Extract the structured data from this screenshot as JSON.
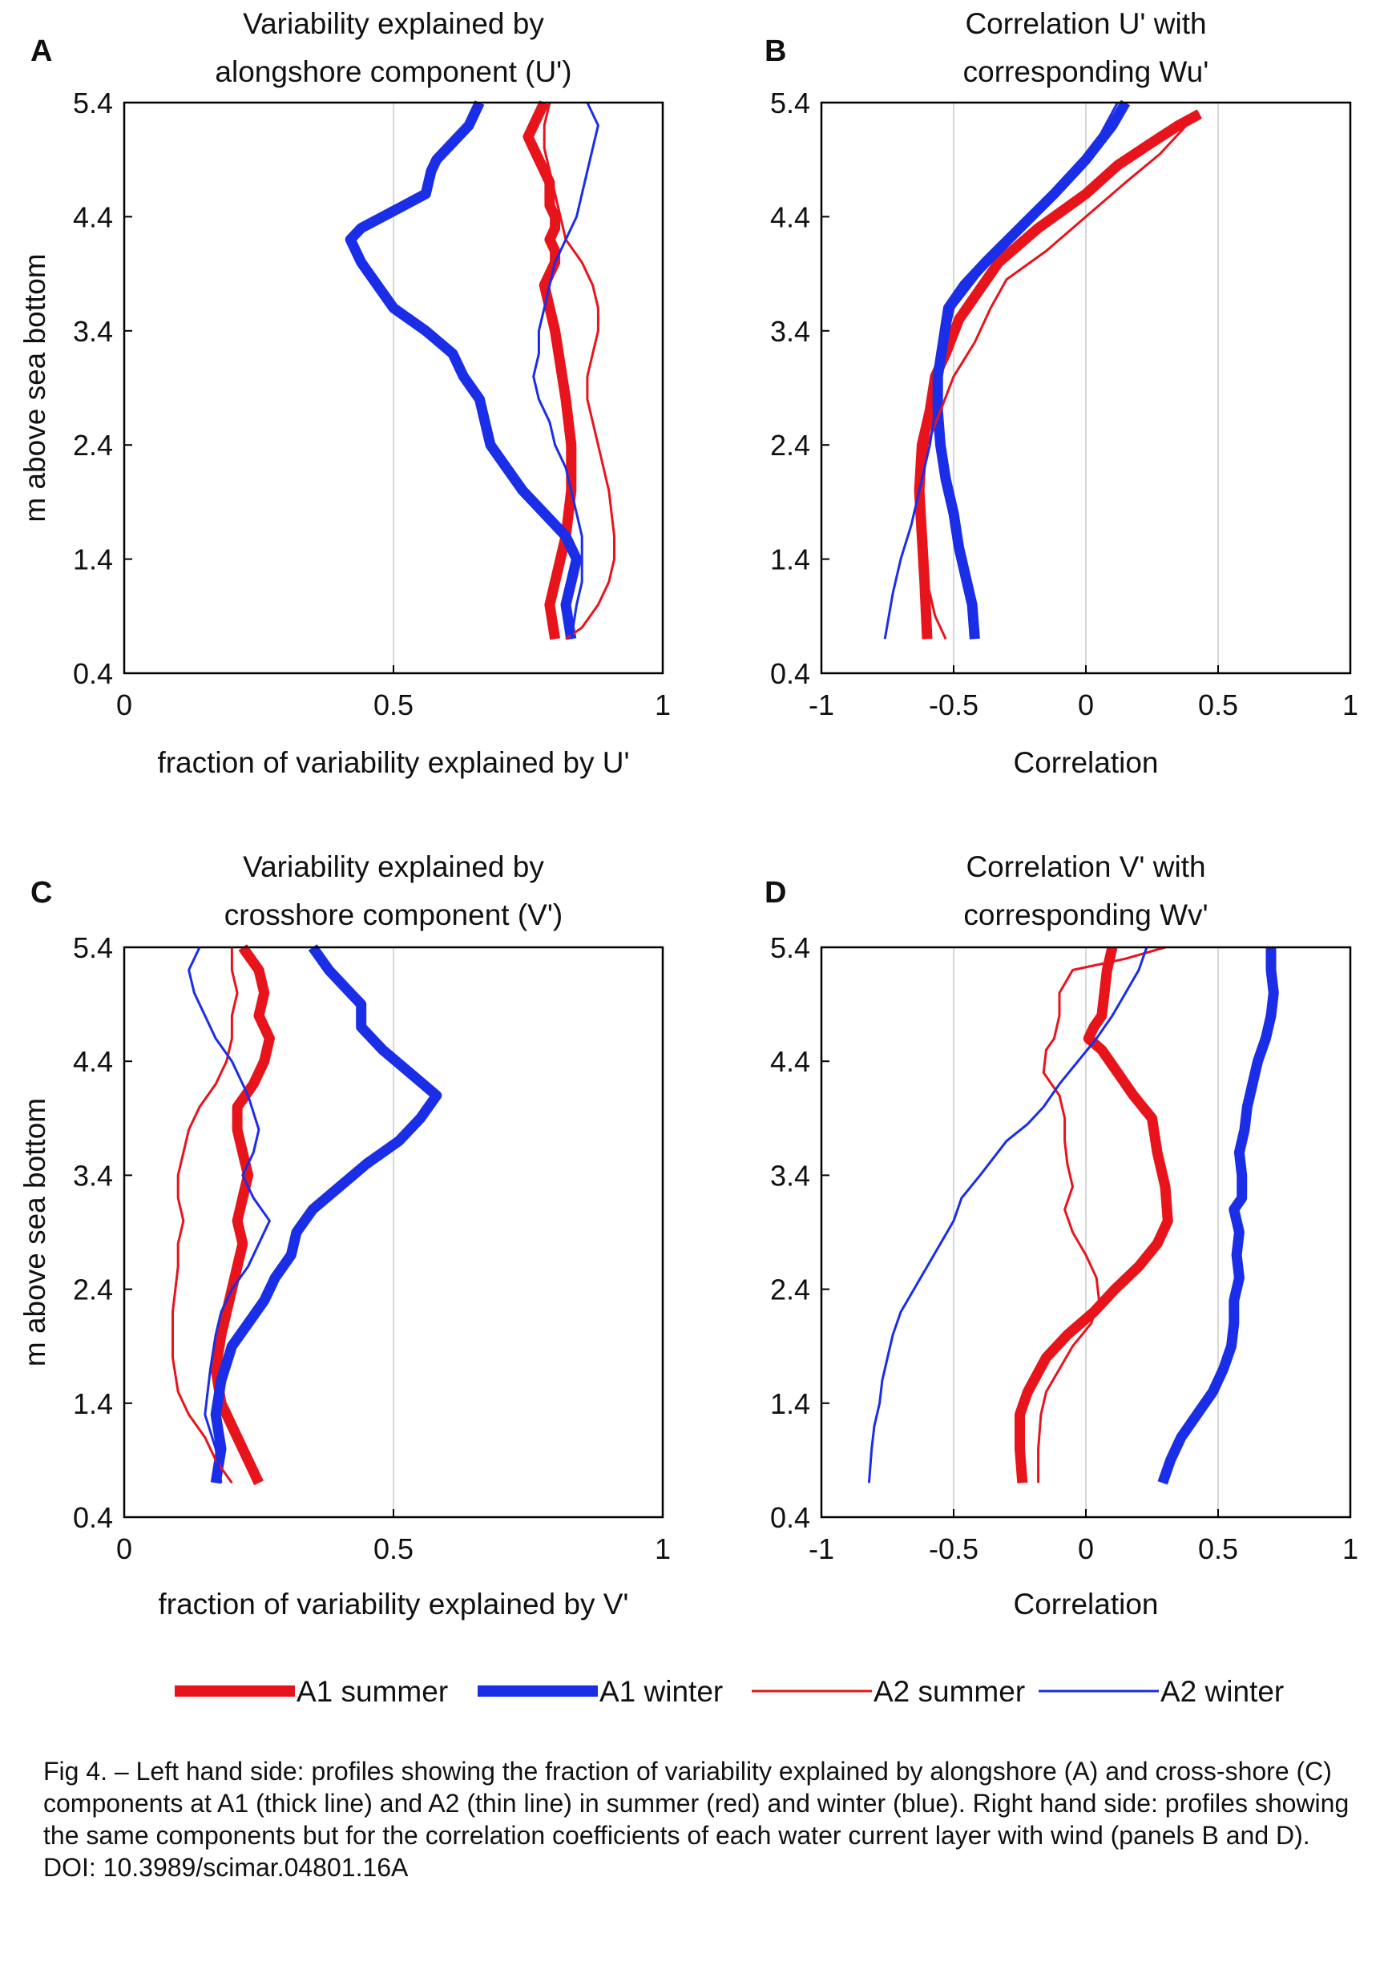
{
  "colors": {
    "summer": "#e8141c",
    "winter": "#1a2ee8",
    "grid": "#d8d8d8",
    "axis": "#000000"
  },
  "legend": [
    {
      "label": "A1 summer",
      "color": "#e8141c",
      "thick": true
    },
    {
      "label": "A1 winter",
      "color": "#1a2ee8",
      "thick": true
    },
    {
      "label": "A2 summer",
      "color": "#e8141c",
      "thick": false
    },
    {
      "label": "A2 winter",
      "color": "#1a2ee8",
      "thick": false
    }
  ],
  "caption": {
    "text": "Fig 4. – Left hand side: profiles showing the fraction of variability explained by alongshore (A) and cross-shore (C) components at A1 (thick line) and A2 (thin line) in summer (red) and winter (blue). Right hand side: profiles showing the same components but for the correlation coefficients of each water current layer with wind (panels B and D).",
    "doi": "DOI: 10.3989/scimar.04801.16A"
  },
  "chart_data": [
    {
      "panel": "A",
      "type": "line",
      "title_lines": [
        "Variability explained by",
        "alongshore component (U')"
      ],
      "xlabel": "fraction of variability explained by U'",
      "ylabel": "m above sea bottom",
      "xlim": [
        0,
        1
      ],
      "ylim": [
        0.4,
        5.4
      ],
      "xticks": [
        0,
        0.5,
        1
      ],
      "xtick_labels": [
        "0",
        "0.5",
        "1"
      ],
      "yticks": [
        0.4,
        1.4,
        2.4,
        3.4,
        4.4,
        5.4
      ],
      "ytick_labels": [
        "0.4",
        "1.4",
        "2.4",
        "3.4",
        "4.4",
        "5.4"
      ],
      "grid_x": [
        0.5
      ],
      "series": [
        {
          "name": "A1 summer",
          "x": [
            0.78,
            0.77,
            0.76,
            0.75,
            0.76,
            0.77,
            0.78,
            0.79,
            0.79,
            0.79,
            0.8,
            0.8,
            0.79,
            0.8,
            0.8,
            0.79,
            0.78,
            0.79,
            0.8,
            0.82,
            0.83,
            0.83,
            0.82,
            0.81,
            0.8,
            0.79,
            0.8
          ],
          "y": [
            5.4,
            5.3,
            5.2,
            5.1,
            5.0,
            4.9,
            4.8,
            4.7,
            4.6,
            4.5,
            4.4,
            4.3,
            4.2,
            4.1,
            4.0,
            3.9,
            3.8,
            3.6,
            3.4,
            2.8,
            2.4,
            2.0,
            1.6,
            1.4,
            1.2,
            1.0,
            0.7
          ]
        },
        {
          "name": "A1 winter",
          "x": [
            0.66,
            0.64,
            0.6,
            0.58,
            0.57,
            0.56,
            0.52,
            0.48,
            0.44,
            0.42,
            0.44,
            0.47,
            0.5,
            0.56,
            0.61,
            0.63,
            0.66,
            0.67,
            0.68,
            0.71,
            0.74,
            0.78,
            0.82,
            0.84,
            0.83,
            0.82,
            0.83
          ],
          "y": [
            5.4,
            5.2,
            5.0,
            4.9,
            4.8,
            4.6,
            4.5,
            4.4,
            4.3,
            4.2,
            4.0,
            3.8,
            3.6,
            3.4,
            3.2,
            3.0,
            2.8,
            2.6,
            2.4,
            2.2,
            2.0,
            1.8,
            1.6,
            1.4,
            1.2,
            1.0,
            0.7
          ]
        },
        {
          "name": "A2 summer",
          "x": [
            0.79,
            0.78,
            0.78,
            0.79,
            0.8,
            0.81,
            0.82,
            0.85,
            0.87,
            0.88,
            0.88,
            0.87,
            0.86,
            0.86,
            0.88,
            0.9,
            0.91,
            0.91,
            0.9,
            0.88,
            0.85,
            0.82
          ],
          "y": [
            5.4,
            5.2,
            5.0,
            4.8,
            4.6,
            4.4,
            4.2,
            4.0,
            3.8,
            3.6,
            3.4,
            3.2,
            3.0,
            2.8,
            2.4,
            2.0,
            1.6,
            1.4,
            1.2,
            1.0,
            0.8,
            0.7
          ]
        },
        {
          "name": "A2 winter",
          "x": [
            0.86,
            0.88,
            0.87,
            0.86,
            0.85,
            0.84,
            0.82,
            0.8,
            0.79,
            0.78,
            0.77,
            0.77,
            0.76,
            0.77,
            0.79,
            0.8,
            0.82,
            0.83,
            0.84,
            0.85,
            0.85,
            0.85,
            0.84,
            0.83
          ],
          "y": [
            5.4,
            5.2,
            5.0,
            4.8,
            4.6,
            4.4,
            4.2,
            4.0,
            3.8,
            3.6,
            3.4,
            3.2,
            3.0,
            2.8,
            2.6,
            2.4,
            2.2,
            2.0,
            1.8,
            1.6,
            1.4,
            1.2,
            1.0,
            0.7
          ]
        }
      ]
    },
    {
      "panel": "B",
      "type": "line",
      "title_lines": [
        "Correlation U' with",
        "corresponding Wu'"
      ],
      "xlabel": "Correlation",
      "ylabel": "",
      "xlim": [
        -1,
        1
      ],
      "ylim": [
        0.4,
        5.4
      ],
      "xticks": [
        -1,
        -0.5,
        0,
        0.5,
        1
      ],
      "xtick_labels": [
        "-1",
        "-0.5",
        "0",
        "0.5",
        "1"
      ],
      "yticks": [
        0.4,
        1.4,
        2.4,
        3.4,
        4.4,
        5.4
      ],
      "ytick_labels": [
        "0.4",
        "1.4",
        "2.4",
        "3.4",
        "4.4",
        "5.4"
      ],
      "grid_x": [
        -0.5,
        0,
        0.5
      ],
      "series": [
        {
          "name": "A1 summer",
          "x": [
            0.43,
            0.35,
            0.25,
            0.12,
            0.0,
            -0.18,
            -0.33,
            -0.42,
            -0.48,
            -0.53,
            -0.57,
            -0.59,
            -0.62,
            -0.63,
            -0.62,
            -0.61,
            -0.6
          ],
          "y": [
            5.3,
            5.2,
            5.05,
            4.85,
            4.6,
            4.3,
            4.0,
            3.7,
            3.5,
            3.2,
            3.0,
            2.7,
            2.4,
            2.0,
            1.6,
            1.2,
            0.7
          ]
        },
        {
          "name": "A1 winter",
          "x": [
            0.15,
            0.1,
            0.0,
            -0.12,
            -0.25,
            -0.38,
            -0.46,
            -0.52,
            -0.54,
            -0.56,
            -0.56,
            -0.55,
            -0.53,
            -0.5,
            -0.48,
            -0.46,
            -0.43,
            -0.42
          ],
          "y": [
            5.4,
            5.2,
            4.9,
            4.6,
            4.3,
            4.0,
            3.8,
            3.6,
            3.3,
            3.0,
            2.7,
            2.4,
            2.1,
            1.8,
            1.5,
            1.3,
            1.0,
            0.7
          ]
        },
        {
          "name": "A2 summer",
          "x": [
            0.38,
            0.28,
            0.15,
            0.0,
            -0.15,
            -0.3,
            -0.36,
            -0.42,
            -0.5,
            -0.55,
            -0.6,
            -0.62,
            -0.63,
            -0.62,
            -0.6,
            -0.57,
            -0.53
          ],
          "y": [
            5.2,
            4.95,
            4.7,
            4.4,
            4.1,
            3.85,
            3.6,
            3.3,
            3.0,
            2.7,
            2.4,
            2.1,
            1.8,
            1.5,
            1.2,
            0.9,
            0.7
          ]
        },
        {
          "name": "A2 winter",
          "x": [
            0.12,
            0.05,
            -0.05,
            -0.15,
            -0.28,
            -0.4,
            -0.5,
            -0.53,
            -0.56,
            -0.57,
            -0.59,
            -0.62,
            -0.66,
            -0.7,
            -0.73,
            -0.76
          ],
          "y": [
            5.4,
            5.1,
            4.8,
            4.5,
            4.2,
            3.9,
            3.6,
            3.3,
            3.0,
            2.7,
            2.4,
            2.1,
            1.7,
            1.4,
            1.1,
            0.7
          ]
        }
      ]
    },
    {
      "panel": "C",
      "type": "line",
      "title_lines": [
        "Variability explained by",
        "crosshore component (V')"
      ],
      "xlabel": "fraction of variability explained by V'",
      "ylabel": "m above sea bottom",
      "xlim": [
        0,
        1
      ],
      "ylim": [
        0.4,
        5.4
      ],
      "xticks": [
        0,
        0.5,
        1
      ],
      "xtick_labels": [
        "0",
        "0.5",
        "1"
      ],
      "yticks": [
        0.4,
        1.4,
        2.4,
        3.4,
        4.4,
        5.4
      ],
      "ytick_labels": [
        "0.4",
        "1.4",
        "2.4",
        "3.4",
        "4.4",
        "5.4"
      ],
      "grid_x": [
        0.5
      ],
      "series": [
        {
          "name": "A1 summer",
          "x": [
            0.22,
            0.25,
            0.26,
            0.25,
            0.27,
            0.26,
            0.24,
            0.21,
            0.21,
            0.22,
            0.23,
            0.22,
            0.21,
            0.22,
            0.21,
            0.2,
            0.19,
            0.18,
            0.17,
            0.18,
            0.2,
            0.23,
            0.25
          ],
          "y": [
            5.4,
            5.2,
            5.0,
            4.8,
            4.6,
            4.4,
            4.2,
            4.0,
            3.8,
            3.6,
            3.4,
            3.2,
            3.0,
            2.8,
            2.6,
            2.4,
            2.2,
            2.0,
            1.7,
            1.4,
            1.2,
            0.9,
            0.7
          ]
        },
        {
          "name": "A1 winter",
          "x": [
            0.35,
            0.38,
            0.42,
            0.44,
            0.44,
            0.48,
            0.53,
            0.58,
            0.55,
            0.51,
            0.45,
            0.4,
            0.35,
            0.32,
            0.31,
            0.28,
            0.26,
            0.23,
            0.2,
            0.18,
            0.17,
            0.18,
            0.17
          ],
          "y": [
            5.4,
            5.2,
            5.0,
            4.9,
            4.7,
            4.5,
            4.3,
            4.1,
            3.9,
            3.7,
            3.5,
            3.3,
            3.1,
            2.9,
            2.7,
            2.5,
            2.3,
            2.1,
            1.9,
            1.6,
            1.3,
            1.0,
            0.7
          ]
        },
        {
          "name": "A2 summer",
          "x": [
            0.2,
            0.2,
            0.21,
            0.2,
            0.2,
            0.19,
            0.17,
            0.14,
            0.12,
            0.11,
            0.1,
            0.1,
            0.11,
            0.1,
            0.1,
            0.09,
            0.09,
            0.1,
            0.12,
            0.15,
            0.17,
            0.2
          ],
          "y": [
            5.4,
            5.2,
            5.0,
            4.8,
            4.6,
            4.4,
            4.2,
            4.0,
            3.8,
            3.6,
            3.4,
            3.2,
            3.0,
            2.8,
            2.6,
            2.2,
            1.8,
            1.5,
            1.3,
            1.1,
            0.9,
            0.7
          ]
        },
        {
          "name": "A2 winter",
          "x": [
            0.14,
            0.12,
            0.13,
            0.15,
            0.17,
            0.2,
            0.23,
            0.25,
            0.24,
            0.22,
            0.24,
            0.27,
            0.25,
            0.23,
            0.2,
            0.18,
            0.17,
            0.16,
            0.15,
            0.17,
            0.18
          ],
          "y": [
            5.4,
            5.2,
            5.0,
            4.8,
            4.6,
            4.4,
            4.1,
            3.8,
            3.6,
            3.4,
            3.2,
            3.0,
            2.8,
            2.6,
            2.4,
            2.2,
            2.0,
            1.7,
            1.3,
            1.0,
            0.7
          ]
        }
      ]
    },
    {
      "panel": "D",
      "type": "line",
      "title_lines": [
        "Correlation V' with",
        "corresponding Wv'"
      ],
      "xlabel": "Correlation",
      "ylabel": "",
      "xlim": [
        -1,
        1
      ],
      "ylim": [
        0.4,
        5.4
      ],
      "xticks": [
        -1,
        -0.5,
        0,
        0.5,
        1
      ],
      "xtick_labels": [
        "-1",
        "-0.5",
        "0",
        "0.5",
        "1"
      ],
      "yticks": [
        0.4,
        1.4,
        2.4,
        3.4,
        4.4,
        5.4
      ],
      "ytick_labels": [
        "0.4",
        "1.4",
        "2.4",
        "3.4",
        "4.4",
        "5.4"
      ],
      "grid_x": [
        -0.5,
        0,
        0.5
      ],
      "series": [
        {
          "name": "A1 summer",
          "x": [
            0.1,
            0.08,
            0.07,
            0.06,
            0.03,
            0.01,
            0.06,
            0.12,
            0.18,
            0.25,
            0.27,
            0.3,
            0.31,
            0.27,
            0.2,
            0.11,
            0.03,
            -0.07,
            -0.15,
            -0.22,
            -0.25,
            -0.25,
            -0.24
          ],
          "y": [
            5.4,
            5.2,
            5.0,
            4.8,
            4.7,
            4.6,
            4.5,
            4.3,
            4.1,
            3.9,
            3.6,
            3.3,
            3.0,
            2.8,
            2.6,
            2.4,
            2.2,
            2.0,
            1.8,
            1.5,
            1.3,
            1.0,
            0.7
          ]
        },
        {
          "name": "A1 winter",
          "x": [
            0.7,
            0.7,
            0.71,
            0.7,
            0.68,
            0.65,
            0.63,
            0.61,
            0.6,
            0.58,
            0.59,
            0.59,
            0.56,
            0.58,
            0.57,
            0.58,
            0.56,
            0.56,
            0.55,
            0.52,
            0.48,
            0.42,
            0.36,
            0.32,
            0.29
          ],
          "y": [
            5.4,
            5.2,
            5.0,
            4.8,
            4.6,
            4.4,
            4.2,
            4.0,
            3.8,
            3.6,
            3.4,
            3.2,
            3.1,
            2.9,
            2.7,
            2.5,
            2.3,
            2.1,
            1.9,
            1.7,
            1.5,
            1.3,
            1.1,
            0.9,
            0.7
          ]
        },
        {
          "name": "A2 summer",
          "x": [
            0.3,
            0.15,
            -0.05,
            -0.1,
            -0.1,
            -0.12,
            -0.15,
            -0.16,
            -0.1,
            -0.08,
            -0.08,
            -0.07,
            -0.05,
            -0.08,
            -0.05,
            0.0,
            0.04,
            0.05,
            0.02,
            -0.05,
            -0.1,
            -0.15,
            -0.17,
            -0.18,
            -0.18
          ],
          "y": [
            5.4,
            5.3,
            5.2,
            5.0,
            4.8,
            4.6,
            4.5,
            4.3,
            4.1,
            3.9,
            3.7,
            3.5,
            3.3,
            3.1,
            2.9,
            2.7,
            2.5,
            2.3,
            2.1,
            1.9,
            1.7,
            1.5,
            1.3,
            1.0,
            0.7
          ]
        },
        {
          "name": "A2 winter",
          "x": [
            0.23,
            0.2,
            0.15,
            0.1,
            0.04,
            -0.03,
            -0.1,
            -0.16,
            -0.22,
            -0.3,
            -0.4,
            -0.47,
            -0.5,
            -0.55,
            -0.6,
            -0.65,
            -0.7,
            -0.73,
            -0.75,
            -0.77,
            -0.78,
            -0.8,
            -0.81,
            -0.82
          ],
          "y": [
            5.4,
            5.2,
            5.0,
            4.8,
            4.6,
            4.4,
            4.2,
            4.0,
            3.85,
            3.7,
            3.4,
            3.2,
            3.0,
            2.8,
            2.6,
            2.4,
            2.2,
            2.0,
            1.8,
            1.6,
            1.4,
            1.2,
            1.0,
            0.7
          ]
        }
      ]
    }
  ]
}
